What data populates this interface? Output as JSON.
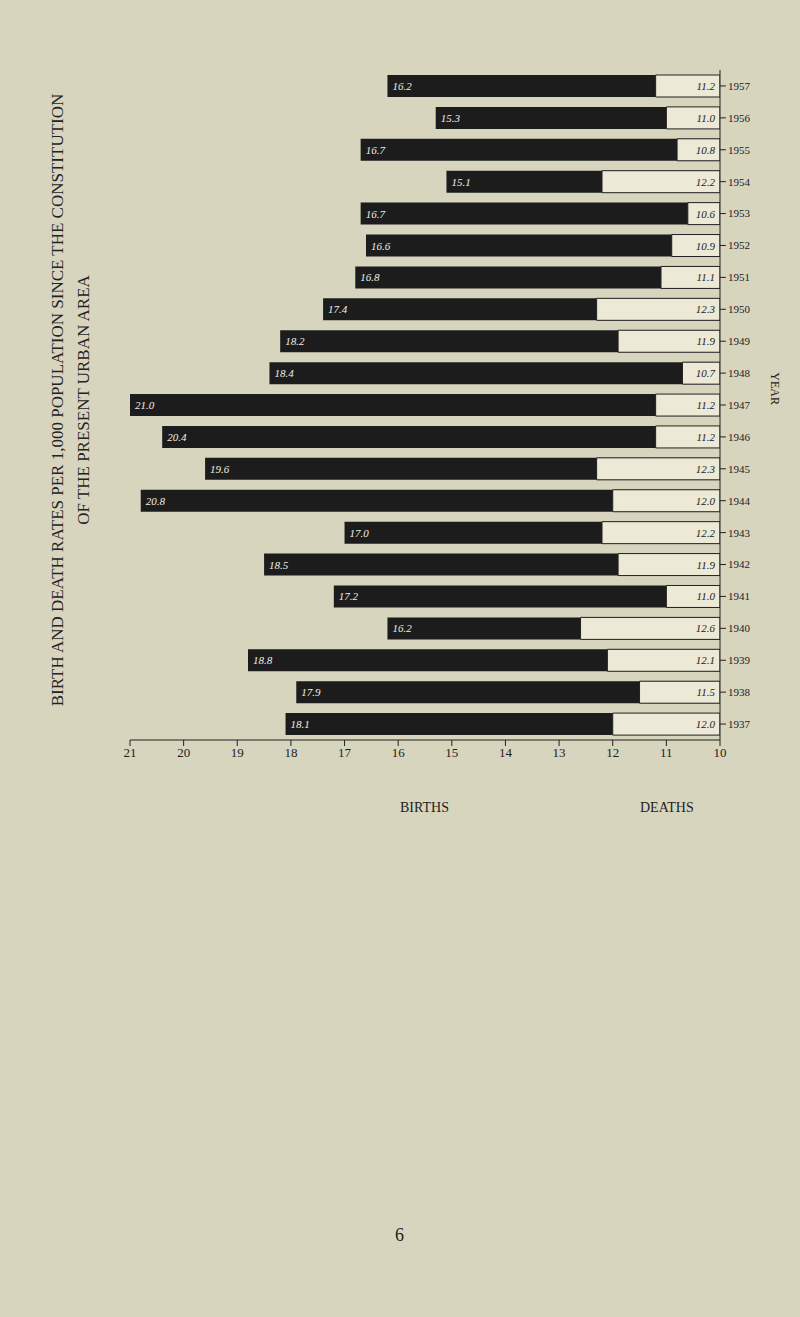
{
  "chart_data": {
    "type": "bar",
    "title": "BIRTH AND DEATH RATES PER 1,000 POPULATION SINCE THE CONSTITUTION",
    "subtitle": "OF THE PRESENT URBAN AREA",
    "orientation": "horizontal",
    "data_labels": true,
    "grid": false,
    "y_label": "YEAR",
    "categories": [
      "1937",
      "1938",
      "1939",
      "1940",
      "1941",
      "1942",
      "1943",
      "1944",
      "1945",
      "1946",
      "1947",
      "1948",
      "1949",
      "1950",
      "1951",
      "1952",
      "1953",
      "1954",
      "1955",
      "1956",
      "1957"
    ],
    "series": [
      {
        "name": "BIRTHS",
        "color": "#1c1c1c",
        "values": [
          18.1,
          17.9,
          18.8,
          16.2,
          17.2,
          18.5,
          17.0,
          20.8,
          19.6,
          20.4,
          21.0,
          18.4,
          18.2,
          17.4,
          16.8,
          16.6,
          16.7,
          15.1,
          16.7,
          15.3,
          16.2
        ],
        "value_labels": [
          "18.1",
          "17.9",
          "18.8",
          "16.2",
          "17.2",
          "18.5",
          "17.0",
          "20.8",
          "19.6",
          "20.4",
          "21.0",
          "18.4",
          "18.2",
          "17.4",
          "16.8",
          "16.6",
          "16.7",
          "15.1",
          "16.7",
          "15.3",
          "16.2"
        ]
      },
      {
        "name": "DEATHS",
        "color": "#ece9d6",
        "values": [
          12.0,
          11.5,
          12.1,
          12.6,
          11.0,
          11.9,
          12.2,
          12.0,
          12.3,
          11.2,
          11.2,
          10.7,
          11.9,
          12.3,
          11.1,
          10.9,
          10.6,
          12.2,
          10.8,
          11.0,
          11.2
        ],
        "value_labels": [
          "12.0",
          "11.5",
          "12.1",
          "12.6",
          "11.0",
          "11.9",
          "12.2",
          "12.0",
          "12.3",
          "11.2",
          "11.2",
          "10.7",
          "11.9",
          "12.3",
          "11.1",
          "10.9",
          "10.6",
          "12.2",
          "10.8",
          "11.0",
          "11.2"
        ]
      }
    ],
    "xlim": [
      10,
      21
    ],
    "xticks": [
      10,
      11,
      12,
      13,
      14,
      15,
      16,
      17,
      18,
      19,
      20,
      21
    ]
  },
  "page_number": "6"
}
